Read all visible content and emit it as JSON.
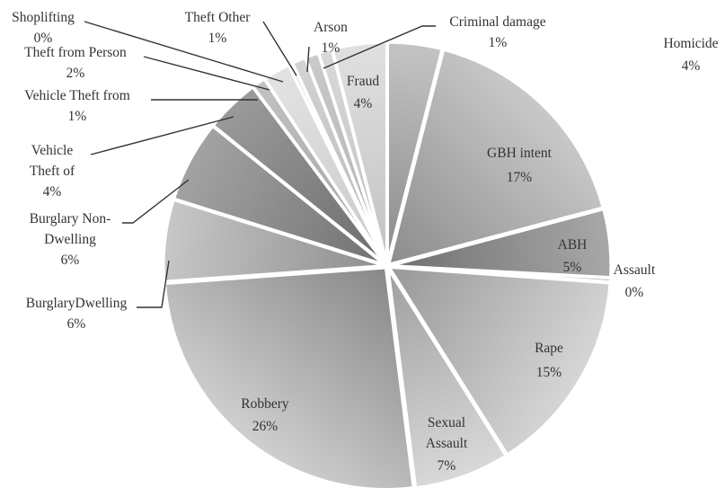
{
  "chart_data": {
    "type": "pie",
    "title": "",
    "legend": "none",
    "slices": [
      {
        "name": "Homicide",
        "value_label": "4%",
        "value": 4,
        "color_light": "#c4c4c4",
        "color_dark": "#8a8a8a"
      },
      {
        "name": "GBH intent",
        "value_label": "17%",
        "value": 17,
        "color_light": "#c9c9c9",
        "color_dark": "#8c8c8c"
      },
      {
        "name": "ABH",
        "value_label": "5%",
        "value": 5,
        "color_light": "#a8a8a8",
        "color_dark": "#6f6f6f"
      },
      {
        "name": "Assault",
        "value_label": "0%",
        "value": 0.3,
        "color_light": "#bdbdbd",
        "color_dark": "#9a9a9a"
      },
      {
        "name": "Rape",
        "value_label": "15%",
        "value": 15,
        "color_light": "#d6d6d6",
        "color_dark": "#989898"
      },
      {
        "name": "Sexual Assault",
        "value_label": "7%",
        "value": 7,
        "color_light": "#d9d9d9",
        "color_dark": "#9e9e9e"
      },
      {
        "name": "Robbery",
        "value_label": "26%",
        "value": 26,
        "color_light": "#cfcfcf",
        "color_dark": "#888888"
      },
      {
        "name": "BurglaryDwelling",
        "value_label": "6%",
        "value": 6,
        "color_light": "#c7c7c7",
        "color_dark": "#8d8d8d"
      },
      {
        "name": "Burglary Non-Dwelling",
        "value_label": "6%",
        "value": 6,
        "color_light": "#a3a3a3",
        "color_dark": "#717171"
      },
      {
        "name": "Vehicle Theft of",
        "value_label": "4%",
        "value": 4,
        "color_light": "#9a9a9a",
        "color_dark": "#6c6c6c"
      },
      {
        "name": "Vehicle Theft from",
        "value_label": "1%",
        "value": 1,
        "color_light": "#c2c2c2",
        "color_dark": "#a0a0a0"
      },
      {
        "name": "Theft from Person",
        "value_label": "2%",
        "value": 2,
        "color_light": "#e3e3e3",
        "color_dark": "#c8c8c8"
      },
      {
        "name": "Shoplifting",
        "value_label": "0%",
        "value": 0.3,
        "color_light": "#d0d0d0",
        "color_dark": "#b5b5b5"
      },
      {
        "name": "Theft  Other",
        "value_label": "1%",
        "value": 1,
        "color_light": "#d4d4d4",
        "color_dark": "#b4b4b4"
      },
      {
        "name": "Arson",
        "value_label": "1%",
        "value": 1,
        "color_light": "#cacaca",
        "color_dark": "#adadad"
      },
      {
        "name": "Criminal damage",
        "value_label": "1%",
        "value": 1,
        "color_light": "#d9d9d9",
        "color_dark": "#bdbdbd"
      },
      {
        "name": "Fraud",
        "value_label": "4%",
        "value": 4,
        "color_light": "#e0e0e0",
        "color_dark": "#c2c2c2"
      }
    ]
  }
}
